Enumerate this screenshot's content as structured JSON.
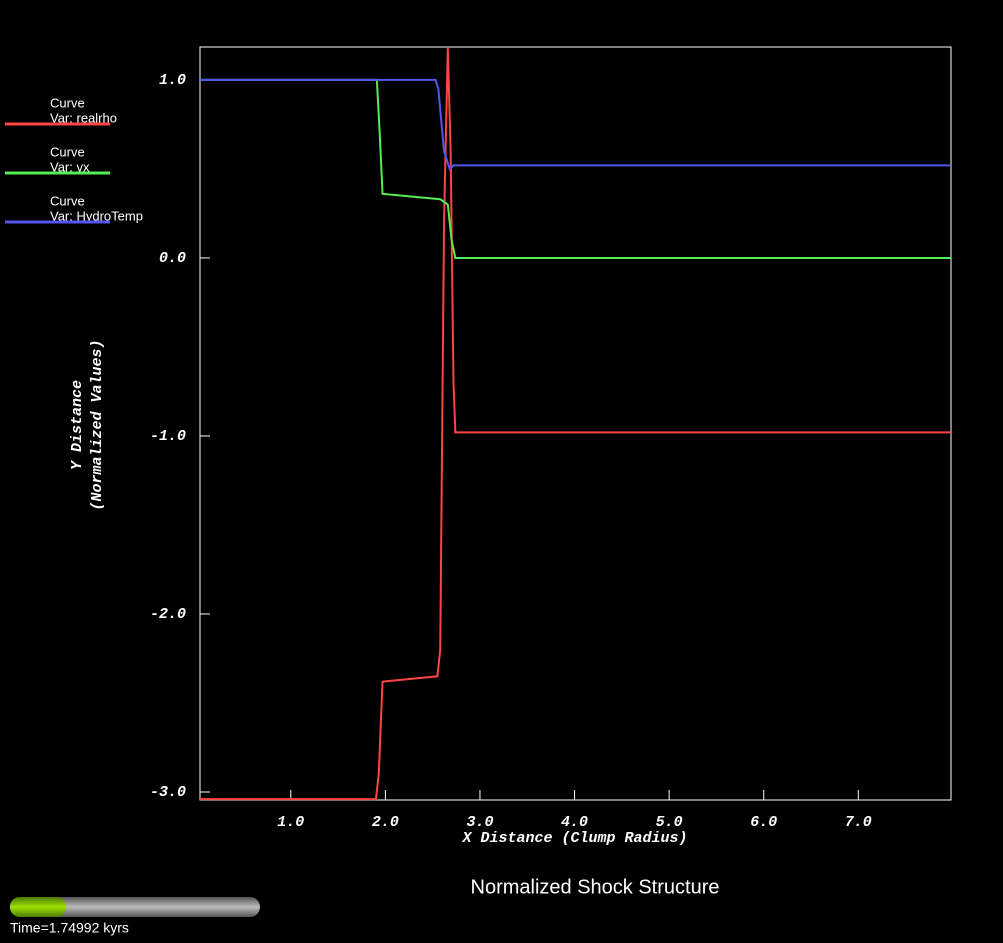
{
  "chart_data": {
    "type": "line",
    "title": "Normalized Shock Structure",
    "xlabel": "X Distance (Clump Radius)",
    "ylabel": [
      "Y Distance",
      "(Normalized Values)"
    ],
    "legend_title": "Curve",
    "time_label": "Time=1.74992 kyrs",
    "xlim": [
      0.04,
      7.98
    ],
    "ylim": [
      -3.045,
      1.185
    ],
    "xticks": [
      {
        "value": 1,
        "label": "1.0"
      },
      {
        "value": 2,
        "label": "2.0"
      },
      {
        "value": 3,
        "label": "3.0"
      },
      {
        "value": 4,
        "label": "4.0"
      },
      {
        "value": 5,
        "label": "5.0"
      },
      {
        "value": 6,
        "label": "6.0"
      },
      {
        "value": 7,
        "label": "7.0"
      }
    ],
    "yticks": [
      {
        "value": 1,
        "label": "1.0"
      },
      {
        "value": 0,
        "label": "0.0"
      },
      {
        "value": -1,
        "label": "-1.0"
      },
      {
        "value": -2,
        "label": "-2.0"
      },
      {
        "value": -3,
        "label": "-3.0"
      }
    ],
    "series": [
      {
        "name": "Var: realrho",
        "color": "#ff4444",
        "x": [
          0.04,
          1.9,
          1.93,
          1.97,
          2.55,
          2.58,
          2.62,
          2.66,
          2.69,
          2.72,
          2.74,
          7.98
        ],
        "values": [
          -3.04,
          -3.04,
          -2.9,
          -2.38,
          -2.35,
          -2.2,
          0.2,
          1.18,
          0.6,
          -0.7,
          -0.98,
          -0.98
        ]
      },
      {
        "name": "Var: vx",
        "color": "#55ee55",
        "x": [
          0.04,
          1.91,
          1.94,
          1.97,
          2.58,
          2.66,
          2.7,
          2.74,
          7.98
        ],
        "values": [
          1.0,
          1.0,
          0.7,
          0.36,
          0.33,
          0.3,
          0.1,
          0.0,
          0.0
        ]
      },
      {
        "name": "Var: HydroTemp",
        "color": "#5555ee",
        "x": [
          0.04,
          2.53,
          2.56,
          2.62,
          2.68,
          2.72,
          7.98
        ],
        "values": [
          1.0,
          1.0,
          0.95,
          0.6,
          0.5,
          0.52,
          0.52
        ]
      }
    ]
  }
}
